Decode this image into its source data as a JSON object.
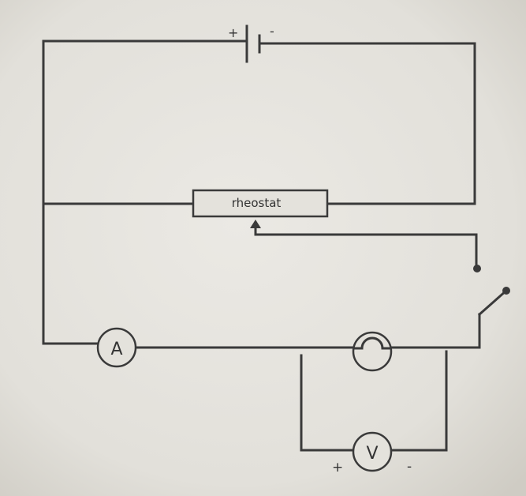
{
  "diagram": {
    "battery": {
      "plus": "+",
      "minus": "-"
    },
    "rheostat": {
      "label": "rheostat"
    },
    "ammeter": {
      "label": "A"
    },
    "voltmeter": {
      "label": "V",
      "plus": "+",
      "minus": "-"
    }
  },
  "colors": {
    "paper": "#e4e2dc",
    "ink": "#3a3a3a"
  }
}
